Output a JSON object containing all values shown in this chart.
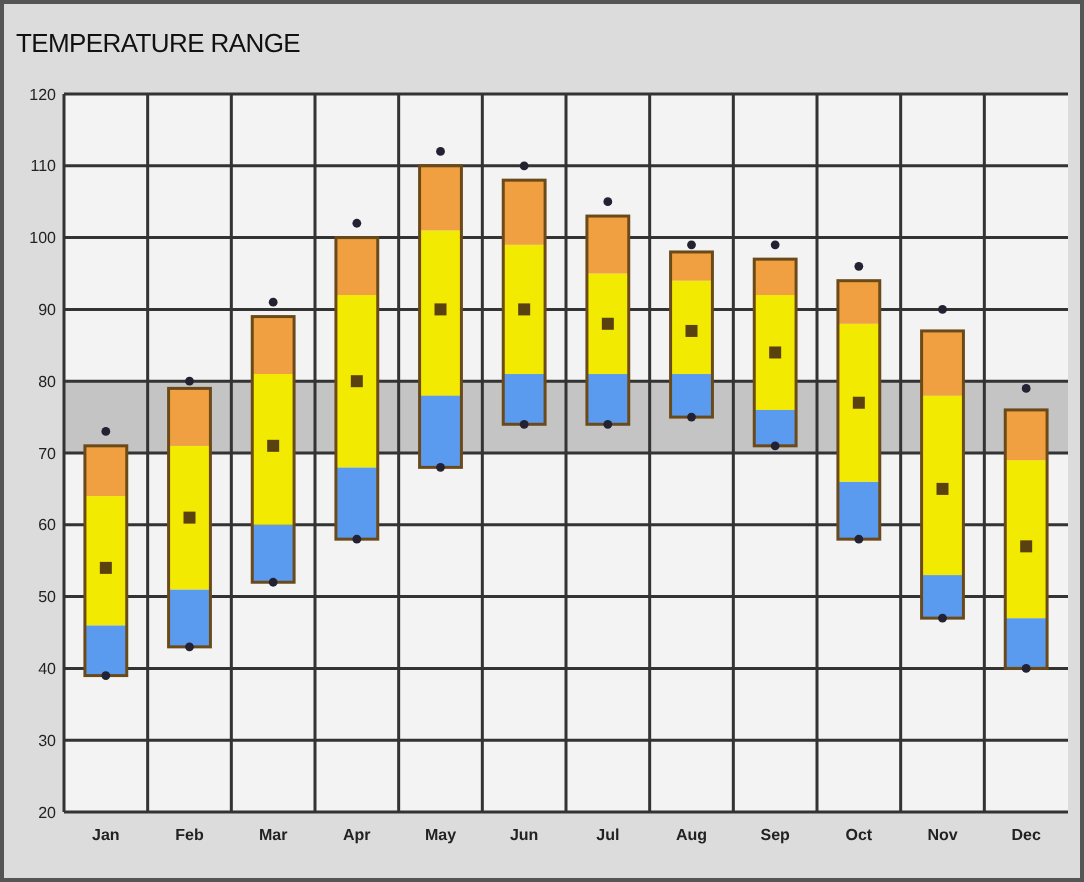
{
  "chart_data": {
    "type": "bar",
    "title": "TEMPERATURE RANGE",
    "categories": [
      "Jan",
      "Feb",
      "Mar",
      "Apr",
      "May",
      "Jun",
      "Jul",
      "Aug",
      "Sep",
      "Oct",
      "Nov",
      "Dec"
    ],
    "series": [
      {
        "color": "#5b9bef",
        "base": [
          39,
          43,
          52,
          58,
          68,
          74,
          74,
          75,
          71,
          58,
          47,
          40
        ],
        "values": [
          7,
          8,
          8,
          10,
          10,
          7,
          7,
          6,
          5,
          8,
          6,
          7
        ]
      },
      {
        "color": "#f2ea00",
        "base": [
          46,
          51,
          60,
          68,
          78,
          81,
          81,
          81,
          76,
          66,
          53,
          47
        ],
        "values": [
          18,
          20,
          21,
          24,
          23,
          18,
          14,
          13,
          16,
          22,
          25,
          22
        ]
      },
      {
        "color": "#f0a040",
        "base": [
          64,
          71,
          81,
          92,
          101,
          99,
          95,
          94,
          92,
          88,
          78,
          69
        ],
        "values": [
          7,
          8,
          8,
          8,
          9,
          9,
          8,
          4,
          5,
          6,
          9,
          7
        ]
      },
      {
        "type": "scatter",
        "marker": "square",
        "color": "#5a4210",
        "x": [
          "Jan",
          "Feb",
          "Mar",
          "Apr",
          "May",
          "Jun",
          "Jul",
          "Aug",
          "Sep",
          "Oct",
          "Nov",
          "Dec"
        ],
        "values": [
          54,
          61,
          71,
          80,
          90,
          90,
          88,
          87,
          84,
          77,
          65,
          57
        ]
      },
      {
        "type": "scatter",
        "marker": "circle",
        "color": "#222233",
        "x": [
          "Jan",
          "Feb",
          "Mar",
          "Apr",
          "May",
          "Jun",
          "Jul",
          "Aug",
          "Sep",
          "Oct",
          "Nov",
          "Dec"
        ],
        "values": [
          73,
          80,
          91,
          102,
          112,
          110,
          105,
          99,
          99,
          96,
          90,
          79
        ]
      },
      {
        "type": "scatter",
        "marker": "circle",
        "color": "#222233",
        "x": [
          "Jan",
          "Feb",
          "Mar",
          "Apr",
          "May",
          "Jun",
          "Jul",
          "Aug",
          "Sep",
          "Oct",
          "Nov",
          "Dec"
        ],
        "values": [
          39,
          43,
          52,
          58,
          68,
          74,
          74,
          75,
          71,
          58,
          47,
          40
        ]
      }
    ],
    "bands": [
      {
        "axis": "y",
        "from": 70,
        "to": 80,
        "color": "#c4c4c4"
      }
    ],
    "ylim": [
      20,
      120
    ],
    "yticks": [
      20,
      30,
      40,
      50,
      60,
      70,
      80,
      90,
      100,
      110,
      120
    ],
    "grid": true
  }
}
